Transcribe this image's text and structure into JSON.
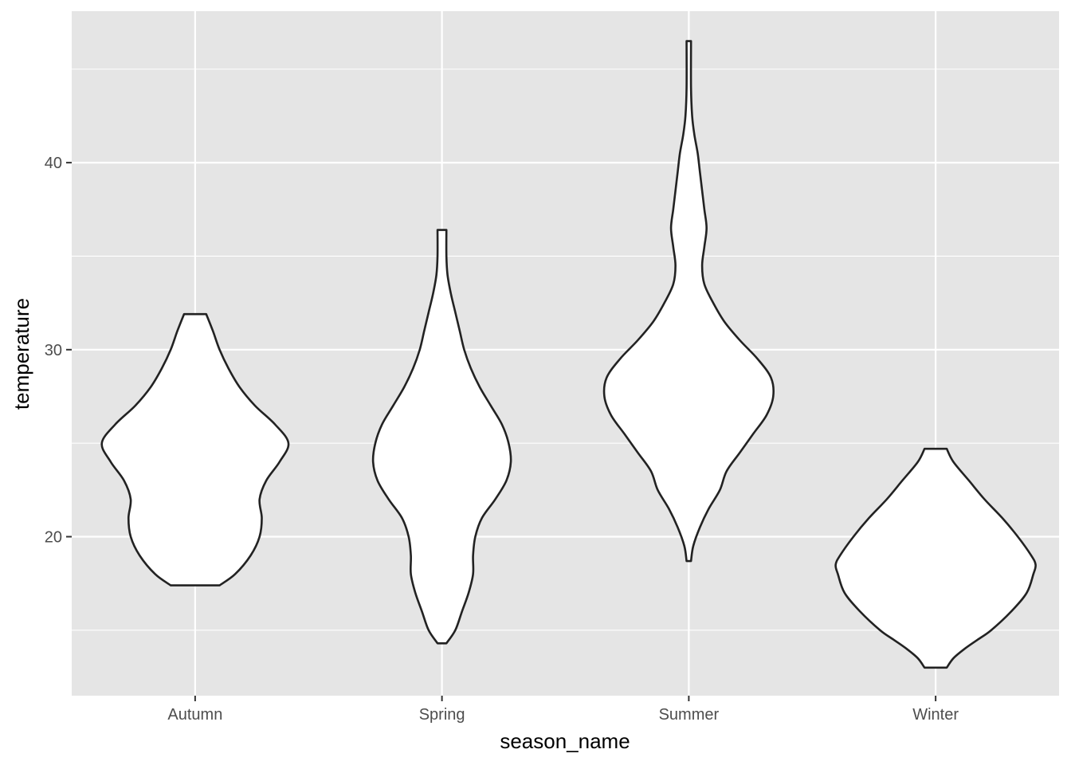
{
  "chart_data": {
    "type": "violin",
    "title": "",
    "xlabel": "season_name",
    "ylabel": "temperature",
    "categories": [
      "Autumn",
      "Spring",
      "Summer",
      "Winter"
    ],
    "ylim": [
      11.5,
      48.1
    ],
    "y_ticks": [
      20,
      30,
      40
    ],
    "y_minor_ticks": [
      15,
      25,
      35,
      45
    ],
    "grid": true,
    "legend": "none",
    "colors": {
      "panel_background": "#e5e5e5",
      "grid": "#ffffff",
      "violin_fill": "#ffffff",
      "violin_stroke": "#222222",
      "tick_label": "#4d4d4d",
      "axis_title": "#000000"
    },
    "violins": [
      {
        "category": "Autumn",
        "min": 17.4,
        "max": 31.9,
        "profile": [
          [
            17.4,
            0.11
          ],
          [
            18.0,
            0.18
          ],
          [
            19.0,
            0.25
          ],
          [
            20.0,
            0.29
          ],
          [
            21.0,
            0.3
          ],
          [
            22.0,
            0.29
          ],
          [
            23.0,
            0.32
          ],
          [
            24.0,
            0.38
          ],
          [
            25.0,
            0.42
          ],
          [
            26.0,
            0.36
          ],
          [
            27.0,
            0.27
          ],
          [
            28.0,
            0.2
          ],
          [
            29.0,
            0.15
          ],
          [
            30.0,
            0.11
          ],
          [
            31.0,
            0.08
          ],
          [
            31.9,
            0.05
          ]
        ]
      },
      {
        "category": "Spring",
        "min": 14.3,
        "max": 36.4,
        "profile": [
          [
            14.3,
            0.02
          ],
          [
            15.0,
            0.06
          ],
          [
            16.0,
            0.09
          ],
          [
            17.0,
            0.12
          ],
          [
            18.0,
            0.14
          ],
          [
            19.0,
            0.14
          ],
          [
            20.0,
            0.15
          ],
          [
            21.0,
            0.18
          ],
          [
            22.0,
            0.24
          ],
          [
            23.0,
            0.29
          ],
          [
            24.0,
            0.31
          ],
          [
            25.0,
            0.3
          ],
          [
            26.0,
            0.27
          ],
          [
            27.0,
            0.22
          ],
          [
            28.0,
            0.17
          ],
          [
            29.0,
            0.13
          ],
          [
            30.0,
            0.1
          ],
          [
            31.0,
            0.08
          ],
          [
            32.0,
            0.06
          ],
          [
            33.0,
            0.04
          ],
          [
            34.0,
            0.025
          ],
          [
            35.0,
            0.02
          ],
          [
            36.4,
            0.02
          ]
        ]
      },
      {
        "category": "Summer",
        "min": 18.7,
        "max": 46.5,
        "profile": [
          [
            18.7,
            0.01
          ],
          [
            19.5,
            0.02
          ],
          [
            20.5,
            0.05
          ],
          [
            21.5,
            0.09
          ],
          [
            22.5,
            0.14
          ],
          [
            23.5,
            0.17
          ],
          [
            24.5,
            0.23
          ],
          [
            25.5,
            0.29
          ],
          [
            26.5,
            0.35
          ],
          [
            27.5,
            0.38
          ],
          [
            28.5,
            0.37
          ],
          [
            29.5,
            0.31
          ],
          [
            30.5,
            0.23
          ],
          [
            31.5,
            0.16
          ],
          [
            32.5,
            0.11
          ],
          [
            33.5,
            0.07
          ],
          [
            34.5,
            0.06
          ],
          [
            35.5,
            0.07
          ],
          [
            36.5,
            0.08
          ],
          [
            37.5,
            0.07
          ],
          [
            38.5,
            0.06
          ],
          [
            39.5,
            0.05
          ],
          [
            40.5,
            0.04
          ],
          [
            41.5,
            0.025
          ],
          [
            42.5,
            0.015
          ],
          [
            44.0,
            0.01
          ],
          [
            46.5,
            0.01
          ]
        ]
      },
      {
        "category": "Winter",
        "min": 13.0,
        "max": 24.7,
        "profile": [
          [
            13.0,
            0.05
          ],
          [
            13.5,
            0.08
          ],
          [
            14.0,
            0.13
          ],
          [
            14.5,
            0.19
          ],
          [
            15.0,
            0.25
          ],
          [
            16.0,
            0.34
          ],
          [
            17.0,
            0.41
          ],
          [
            18.0,
            0.44
          ],
          [
            18.5,
            0.45
          ],
          [
            19.0,
            0.43
          ],
          [
            20.0,
            0.37
          ],
          [
            21.0,
            0.3
          ],
          [
            22.0,
            0.22
          ],
          [
            23.0,
            0.15
          ],
          [
            24.0,
            0.08
          ],
          [
            24.7,
            0.05
          ]
        ]
      }
    ]
  }
}
